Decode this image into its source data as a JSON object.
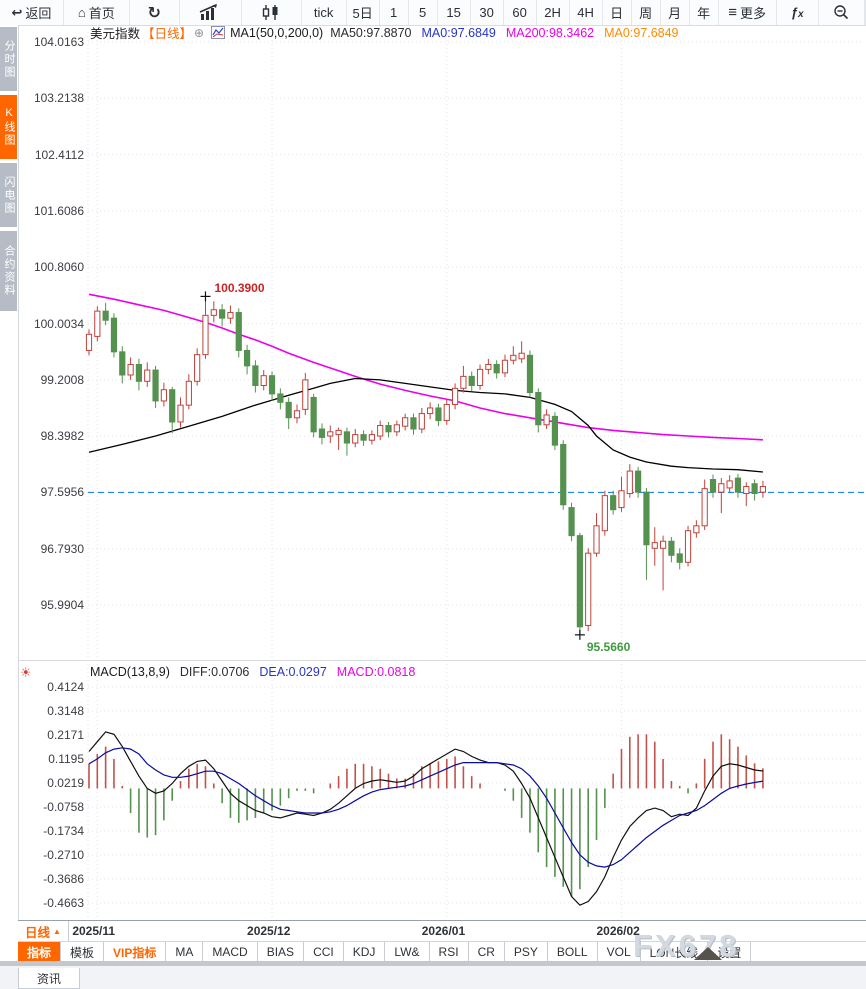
{
  "toolbar": {
    "back": "返回",
    "home": "首页",
    "periods": [
      "tick",
      "5日",
      "1",
      "5",
      "15",
      "30",
      "60",
      "2H",
      "4H",
      "日",
      "周",
      "月",
      "年"
    ],
    "more": "更多",
    "fx": "fx"
  },
  "icons": {
    "back": "↩",
    "home": "⌂",
    "refresh": "↻",
    "more": "≡",
    "plus_badge": "⊕",
    "macd_settings": "☀",
    "period_up_triangle": "▲"
  },
  "sidebar": {
    "items": [
      {
        "label": "分时图",
        "active": false
      },
      {
        "label": "K线图",
        "active": true
      },
      {
        "label": "闪电图",
        "active": false
      },
      {
        "label": "合约资料",
        "active": false
      }
    ]
  },
  "price_pane": {
    "title": "美元指数",
    "period_tag": "【日线】",
    "ma_settings": "MA1(50,0,200,0)",
    "ma_values": [
      {
        "label": "MA50:97.8870",
        "color": "#2b2b31"
      },
      {
        "label": "MA0:97.6849",
        "color": "#2636c8"
      },
      {
        "label": "MA200:98.3462",
        "color": "#ea00ea"
      },
      {
        "label": "MA0:97.6849",
        "color": "#ff8a00"
      }
    ],
    "high_annotation": "100.3900",
    "low_annotation": "95.5660"
  },
  "macd_pane": {
    "title": "MACD(13,8,9)",
    "values": [
      {
        "label": "DIFF:0.0706",
        "color": "#2b2b31"
      },
      {
        "label": "DEA:0.0297",
        "color": "#2636c8"
      },
      {
        "label": "MACD:0.0818",
        "color": "#ea00ea"
      }
    ]
  },
  "xaxis": {
    "period_label": "日线",
    "months": [
      "2025/11",
      "2025/12",
      "2026/01",
      "2026/02"
    ]
  },
  "bottom_tabs": [
    {
      "label": "指标",
      "active": true
    },
    {
      "label": "模板"
    },
    {
      "label": "VIP指标",
      "vip": true
    },
    {
      "label": "MA"
    },
    {
      "label": "MACD"
    },
    {
      "label": "BIAS"
    },
    {
      "label": "CCI"
    },
    {
      "label": "KDJ"
    },
    {
      "label": "LW&"
    },
    {
      "label": "RSI"
    },
    {
      "label": "CR"
    },
    {
      "label": "PSY"
    },
    {
      "label": "BOLL"
    },
    {
      "label": "VOL"
    },
    {
      "label": "LON长线"
    },
    {
      "label": "设置"
    }
  ],
  "status_bar": {
    "tab": "资讯"
  },
  "watermark": "FX678",
  "colors": {
    "accent_orange": "#ff6600",
    "candle_up": "#c1423a",
    "candle_down": "#55914f",
    "ma50": "#000000",
    "ma200": "#ea00ea",
    "diff_line": "#111111",
    "dea_line": "#0b0b9e",
    "hist_up": "#c1524a",
    "hist_down": "#55914f",
    "last_price_line": "#1c86ee",
    "high_annotation": "#cc2222",
    "low_annotation": "#3d9a3d"
  },
  "chart_data": [
    {
      "type": "candlestick",
      "title": "美元指数 日线",
      "y_ticks": [
        "104.0163",
        "103.2138",
        "102.4112",
        "101.6086",
        "100.8060",
        "100.0034",
        "99.2008",
        "98.3982",
        "97.5956",
        "96.7930",
        "95.9904"
      ],
      "last_price_line": 97.5956,
      "months": [
        {
          "label": "2025/11",
          "i": 1
        },
        {
          "label": "2025/12",
          "i": 22
        },
        {
          "label": "2026/01",
          "i": 43
        },
        {
          "label": "2026/02",
          "i": 64
        }
      ],
      "high_marker": {
        "i": 14,
        "price": 100.39
      },
      "low_marker": {
        "i": 59,
        "price": 95.566
      },
      "candles": [
        [
          99.62,
          99.92,
          99.55,
          99.85
        ],
        [
          99.82,
          100.25,
          99.75,
          100.18
        ],
        [
          100.18,
          100.3,
          99.98,
          100.05
        ],
        [
          100.08,
          100.15,
          99.52,
          99.6
        ],
        [
          99.6,
          99.68,
          99.15,
          99.27
        ],
        [
          99.27,
          99.52,
          99.2,
          99.42
        ],
        [
          99.42,
          99.5,
          99.05,
          99.18
        ],
        [
          99.18,
          99.45,
          99.1,
          99.34
        ],
        [
          99.34,
          99.4,
          98.8,
          98.9
        ],
        [
          98.9,
          99.16,
          98.82,
          99.06
        ],
        [
          99.06,
          99.1,
          98.44,
          98.6
        ],
        [
          98.6,
          98.95,
          98.52,
          98.84
        ],
        [
          98.84,
          99.28,
          98.78,
          99.18
        ],
        [
          99.18,
          99.65,
          99.12,
          99.56
        ],
        [
          99.56,
          100.39,
          99.5,
          100.12
        ],
        [
          100.12,
          100.32,
          100.02,
          100.2
        ],
        [
          100.2,
          100.28,
          99.96,
          100.08
        ],
        [
          100.08,
          100.26,
          100.0,
          100.16
        ],
        [
          100.16,
          100.22,
          99.52,
          99.62
        ],
        [
          99.62,
          99.7,
          99.28,
          99.4
        ],
        [
          99.4,
          99.48,
          99.02,
          99.12
        ],
        [
          99.12,
          99.34,
          99.05,
          99.26
        ],
        [
          99.26,
          99.32,
          98.9,
          99.0
        ],
        [
          99.0,
          99.08,
          98.78,
          98.88
        ],
        [
          98.88,
          98.95,
          98.5,
          98.66
        ],
        [
          98.66,
          98.85,
          98.58,
          98.76
        ],
        [
          98.78,
          99.3,
          98.7,
          99.2
        ],
        [
          98.95,
          99.0,
          98.38,
          98.46
        ],
        [
          98.5,
          98.58,
          98.28,
          98.38
        ],
        [
          98.4,
          98.55,
          98.3,
          98.46
        ],
        [
          98.42,
          98.52,
          98.2,
          98.48
        ],
        [
          98.46,
          98.52,
          98.12,
          98.3
        ],
        [
          98.3,
          98.5,
          98.24,
          98.42
        ],
        [
          98.42,
          98.48,
          98.26,
          98.34
        ],
        [
          98.34,
          98.48,
          98.28,
          98.42
        ],
        [
          98.4,
          98.62,
          98.34,
          98.55
        ],
        [
          98.55,
          98.6,
          98.38,
          98.46
        ],
        [
          98.46,
          98.62,
          98.4,
          98.56
        ],
        [
          98.54,
          98.72,
          98.48,
          98.66
        ],
        [
          98.66,
          98.72,
          98.42,
          98.5
        ],
        [
          98.5,
          98.8,
          98.44,
          98.72
        ],
        [
          98.72,
          98.88,
          98.64,
          98.8
        ],
        [
          98.8,
          98.86,
          98.54,
          98.62
        ],
        [
          98.62,
          98.92,
          98.56,
          98.85
        ],
        [
          98.85,
          99.15,
          98.78,
          99.08
        ],
        [
          99.08,
          99.4,
          99.02,
          99.25
        ],
        [
          99.25,
          99.32,
          99.04,
          99.12
        ],
        [
          99.12,
          99.42,
          99.06,
          99.35
        ],
        [
          99.35,
          99.5,
          99.28,
          99.42
        ],
        [
          99.42,
          99.48,
          99.22,
          99.3
        ],
        [
          99.3,
          99.56,
          99.24,
          99.48
        ],
        [
          99.48,
          99.68,
          99.42,
          99.55
        ],
        [
          99.5,
          99.75,
          99.44,
          99.58
        ],
        [
          99.55,
          99.62,
          98.95,
          99.02
        ],
        [
          99.02,
          99.08,
          98.45,
          98.56
        ],
        [
          98.56,
          98.78,
          98.5,
          98.7
        ],
        [
          98.68,
          98.74,
          98.2,
          98.27
        ],
        [
          98.28,
          98.34,
          97.35,
          97.42
        ],
        [
          97.38,
          97.45,
          96.9,
          96.98
        ],
        [
          96.98,
          97.02,
          95.566,
          95.68
        ],
        [
          95.7,
          96.8,
          95.62,
          96.73
        ],
        [
          96.73,
          97.3,
          96.68,
          97.12
        ],
        [
          97.05,
          97.62,
          96.98,
          97.55
        ],
        [
          97.55,
          97.62,
          97.28,
          97.35
        ],
        [
          97.38,
          97.82,
          97.32,
          97.62
        ],
        [
          97.58,
          98.0,
          97.52,
          97.9
        ],
        [
          97.9,
          97.96,
          97.52,
          97.6
        ],
        [
          97.6,
          97.66,
          96.35,
          96.85
        ],
        [
          96.8,
          97.1,
          96.55,
          96.88
        ],
        [
          96.8,
          96.98,
          96.2,
          96.9
        ],
        [
          96.9,
          96.96,
          96.6,
          96.7
        ],
        [
          96.72,
          96.8,
          96.5,
          96.6
        ],
        [
          96.6,
          97.12,
          96.54,
          97.05
        ],
        [
          97.02,
          97.2,
          96.95,
          97.12
        ],
        [
          97.12,
          97.78,
          97.06,
          97.65
        ],
        [
          97.78,
          97.85,
          97.52,
          97.6
        ],
        [
          97.6,
          97.8,
          97.3,
          97.72
        ],
        [
          97.66,
          97.84,
          97.6,
          97.76
        ],
        [
          97.8,
          97.86,
          97.52,
          97.6
        ],
        [
          97.58,
          97.74,
          97.4,
          97.68
        ],
        [
          97.72,
          97.78,
          97.48,
          97.58
        ],
        [
          97.6,
          97.76,
          97.52,
          97.68
        ]
      ],
      "ma50_anchors": [
        [
          0,
          98.17
        ],
        [
          4,
          98.28
        ],
        [
          8,
          98.4
        ],
        [
          12,
          98.54
        ],
        [
          16,
          98.68
        ],
        [
          20,
          98.84
        ],
        [
          24,
          98.98
        ],
        [
          27,
          99.08
        ],
        [
          29,
          99.15
        ],
        [
          32,
          99.22
        ],
        [
          35,
          99.2
        ],
        [
          38,
          99.15
        ],
        [
          41,
          99.1
        ],
        [
          44,
          99.05
        ],
        [
          47,
          99.02
        ],
        [
          50,
          99.0
        ],
        [
          53,
          98.95
        ],
        [
          56,
          98.85
        ],
        [
          58,
          98.75
        ],
        [
          60,
          98.55
        ],
        [
          61,
          98.4
        ],
        [
          63,
          98.2
        ],
        [
          65,
          98.1
        ],
        [
          67,
          98.03
        ],
        [
          70,
          97.97
        ],
        [
          72,
          97.95
        ],
        [
          75,
          97.93
        ],
        [
          78,
          97.92
        ],
        [
          81,
          97.887
        ]
      ],
      "ma200_anchors": [
        [
          0,
          100.42
        ],
        [
          3,
          100.35
        ],
        [
          6,
          100.27
        ],
        [
          9,
          100.19
        ],
        [
          12,
          100.09
        ],
        [
          14,
          100.02
        ],
        [
          16,
          99.94
        ],
        [
          18,
          99.85
        ],
        [
          20,
          99.77
        ],
        [
          22,
          99.68
        ],
        [
          24,
          99.58
        ],
        [
          27,
          99.45
        ],
        [
          30,
          99.33
        ],
        [
          32,
          99.25
        ],
        [
          35,
          99.14
        ],
        [
          38,
          99.05
        ],
        [
          41,
          98.97
        ],
        [
          44,
          98.9
        ],
        [
          47,
          98.8
        ],
        [
          50,
          98.72
        ],
        [
          53,
          98.66
        ],
        [
          55,
          98.62
        ],
        [
          58,
          98.56
        ],
        [
          60,
          98.52
        ],
        [
          63,
          98.48
        ],
        [
          66,
          98.45
        ],
        [
          69,
          98.42
        ],
        [
          72,
          98.4
        ],
        [
          75,
          98.38
        ],
        [
          78,
          98.365
        ],
        [
          81,
          98.3462
        ]
      ]
    },
    {
      "type": "macd",
      "y_ticks": [
        "0.4124",
        "0.3148",
        "0.2171",
        "0.1195",
        "0.0219",
        "-0.0758",
        "-0.1734",
        "-0.2710",
        "-0.3686",
        "-0.4663"
      ],
      "histogram_formula": "2*(diff-dea)",
      "diff": [
        0.15,
        0.19,
        0.23,
        0.22,
        0.17,
        0.11,
        0.05,
        0.0,
        -0.02,
        -0.01,
        0.02,
        0.06,
        0.09,
        0.11,
        0.115,
        0.08,
        0.03,
        -0.02,
        -0.05,
        -0.07,
        -0.09,
        -0.1,
        -0.115,
        -0.12,
        -0.11,
        -0.1,
        -0.105,
        -0.11,
        -0.1,
        -0.085,
        -0.06,
        -0.03,
        0.0,
        0.02,
        0.03,
        0.035,
        0.03,
        0.025,
        0.03,
        0.05,
        0.08,
        0.1,
        0.12,
        0.14,
        0.16,
        0.15,
        0.13,
        0.115,
        0.105,
        0.105,
        0.095,
        0.07,
        0.02,
        -0.04,
        -0.12,
        -0.2,
        -0.28,
        -0.36,
        -0.44,
        -0.475,
        -0.46,
        -0.42,
        -0.36,
        -0.28,
        -0.21,
        -0.155,
        -0.12,
        -0.09,
        -0.08,
        -0.09,
        -0.115,
        -0.105,
        -0.11,
        -0.08,
        -0.01,
        0.05,
        0.09,
        0.1,
        0.095,
        0.085,
        0.075,
        0.0706
      ],
      "dea": [
        0.1,
        0.12,
        0.145,
        0.16,
        0.165,
        0.16,
        0.14,
        0.1,
        0.075,
        0.055,
        0.045,
        0.045,
        0.05,
        0.06,
        0.07,
        0.07,
        0.06,
        0.04,
        0.02,
        -0.005,
        -0.03,
        -0.05,
        -0.07,
        -0.085,
        -0.09,
        -0.095,
        -0.1,
        -0.1,
        -0.1,
        -0.095,
        -0.085,
        -0.07,
        -0.05,
        -0.03,
        -0.015,
        -0.005,
        0.0,
        0.005,
        0.01,
        0.02,
        0.035,
        0.05,
        0.065,
        0.08,
        0.095,
        0.105,
        0.105,
        0.105,
        0.105,
        0.105,
        0.1,
        0.095,
        0.08,
        0.05,
        0.01,
        -0.04,
        -0.1,
        -0.16,
        -0.22,
        -0.27,
        -0.3,
        -0.315,
        -0.32,
        -0.31,
        -0.29,
        -0.26,
        -0.23,
        -0.2,
        -0.175,
        -0.15,
        -0.13,
        -0.11,
        -0.1,
        -0.09,
        -0.07,
        -0.045,
        -0.02,
        0.0,
        0.01,
        0.018,
        0.024,
        0.0297
      ]
    }
  ]
}
